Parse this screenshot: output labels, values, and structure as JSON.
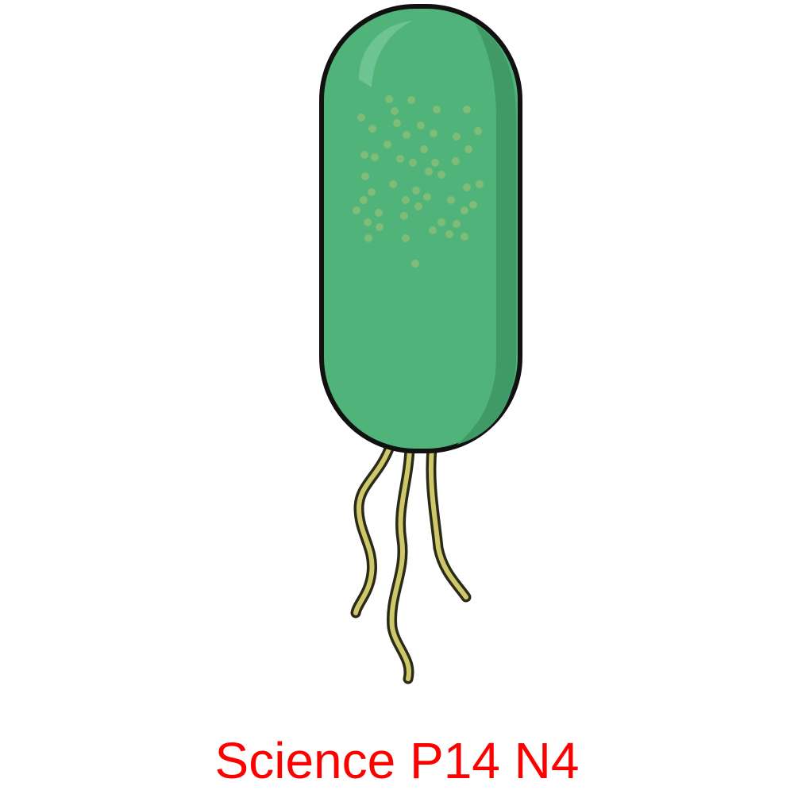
{
  "caption": "Science P14 N4",
  "colors": {
    "caption": "#ff0000",
    "body_fill": "#4fb37a",
    "body_shade": "#3f9a65",
    "body_highlight": "#7ccb9d",
    "outline": "#111111",
    "speckles": "#8fbf78",
    "flagella": "#cfc86a",
    "flagella_outline": "#2a2a18"
  },
  "icons": {
    "illustration": "rod-bacterium-with-flagella-icon"
  }
}
